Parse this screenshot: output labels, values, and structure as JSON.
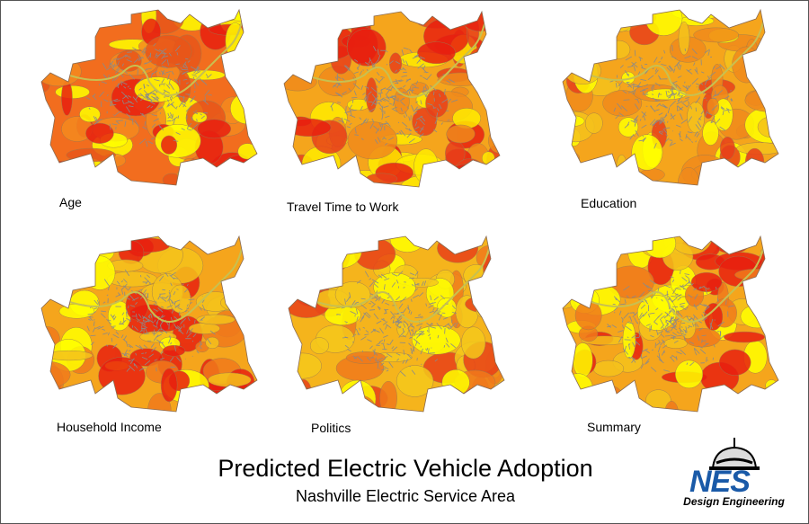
{
  "maps": [
    {
      "label": "Age",
      "palette": {
        "base": "#f26d1e",
        "accents": [
          "#e8561a",
          "#f58a1f",
          "#ffff00",
          "#e82010"
        ]
      },
      "yellow_share": 0.15
    },
    {
      "label": "Travel Time to Work",
      "palette": {
        "base": "#f5a51c",
        "accents": [
          "#f08a1c",
          "#ffeb00",
          "#e8401a",
          "#e82010"
        ]
      },
      "yellow_share": 0.3
    },
    {
      "label": "Education",
      "palette": {
        "base": "#f5a51c",
        "accents": [
          "#f5c21c",
          "#f08a1c",
          "#e8401a",
          "#ffff00"
        ]
      },
      "yellow_share": 0.25
    },
    {
      "label": "Household Income",
      "palette": {
        "base": "#f5a51c",
        "accents": [
          "#f5c21c",
          "#f07a1c",
          "#e82010",
          "#ffff00"
        ]
      },
      "yellow_share": 0.2
    },
    {
      "label": "Politics",
      "palette": {
        "base": "#f5b41c",
        "accents": [
          "#f5c81c",
          "#f07a1c",
          "#e84018",
          "#ffff00"
        ]
      },
      "yellow_share": 0.25
    },
    {
      "label": "Summary",
      "palette": {
        "base": "#f5a51c",
        "accents": [
          "#f07a1c",
          "#f5c21c",
          "#e82010",
          "#ffff00"
        ]
      },
      "yellow_share": 0.2
    }
  ],
  "street_color": "#8a8a8a",
  "title": "Predicted Electric Vehicle Adoption",
  "subtitle": "Nashville Electric Service Area",
  "logo": {
    "mark": "NES",
    "text": "Design Engineering",
    "brand_color": "#1a5aa8"
  }
}
